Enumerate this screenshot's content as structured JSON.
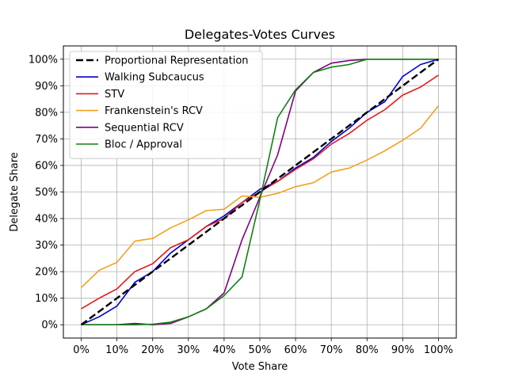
{
  "chart_data": {
    "type": "line",
    "title": "Delegates-Votes Curves",
    "xlabel": "Vote Share",
    "ylabel": "Delegate Share",
    "xlim": [
      -5,
      105
    ],
    "ylim": [
      -5,
      105
    ],
    "grid": true,
    "legend_position": "top-left",
    "x_ticks": [
      0,
      10,
      20,
      30,
      40,
      50,
      60,
      70,
      80,
      90,
      100
    ],
    "x_tick_labels": [
      "0%",
      "10%",
      "20%",
      "30%",
      "40%",
      "50%",
      "60%",
      "70%",
      "80%",
      "90%",
      "100%"
    ],
    "y_ticks": [
      0,
      10,
      20,
      30,
      40,
      50,
      60,
      70,
      80,
      90,
      100
    ],
    "y_tick_labels": [
      "0%",
      "10%",
      "20%",
      "30%",
      "40%",
      "50%",
      "60%",
      "70%",
      "80%",
      "90%",
      "100%"
    ],
    "x": [
      0,
      5,
      10,
      15,
      20,
      25,
      30,
      35,
      40,
      45,
      50,
      55,
      60,
      65,
      70,
      75,
      80,
      85,
      90,
      95,
      100
    ],
    "series": [
      {
        "name": "Proportional Representation",
        "color": "#000000",
        "dashed": true,
        "values": [
          0,
          5,
          10,
          15,
          20,
          25,
          30,
          35,
          40,
          45,
          50,
          55,
          60,
          65,
          70,
          75,
          80,
          85,
          90,
          95,
          100
        ]
      },
      {
        "name": "Walking Subcaucus",
        "color": "#0000cc",
        "dashed": false,
        "values": [
          0,
          3,
          7,
          16,
          20,
          27,
          32,
          37,
          41,
          46,
          51,
          54,
          59,
          63,
          69,
          74,
          80,
          84,
          93.5,
          98,
          100
        ]
      },
      {
        "name": "STV",
        "color": "#e31a1c",
        "dashed": false,
        "values": [
          6,
          10,
          13.5,
          20,
          23,
          29,
          32,
          37,
          40,
          46,
          50,
          54,
          58.5,
          62.5,
          68,
          72,
          77,
          81,
          86.5,
          89.5,
          94
        ]
      },
      {
        "name": "Frankenstein's RCV",
        "color": "#f2a11f",
        "dashed": false,
        "values": [
          14,
          20.5,
          23.5,
          31.5,
          32.5,
          36.5,
          39.5,
          43,
          43.5,
          48.5,
          48,
          49.5,
          52,
          53.5,
          57.5,
          59,
          62,
          65.5,
          69.5,
          74,
          82.5
        ]
      },
      {
        "name": "Sequential RCV",
        "color": "#800080",
        "dashed": false,
        "values": [
          0,
          0,
          0,
          0.5,
          0,
          0.5,
          3,
          6,
          12,
          32,
          48,
          64,
          88,
          95,
          98.5,
          99.5,
          100,
          100,
          100,
          100,
          100
        ]
      },
      {
        "name": "Bloc / Approval",
        "color": "#128012",
        "dashed": false,
        "values": [
          0,
          0,
          0,
          0,
          0.2,
          1,
          3,
          6,
          11,
          18,
          47,
          78,
          88.5,
          95,
          97,
          98,
          100,
          100,
          100,
          100,
          100
        ]
      }
    ]
  }
}
